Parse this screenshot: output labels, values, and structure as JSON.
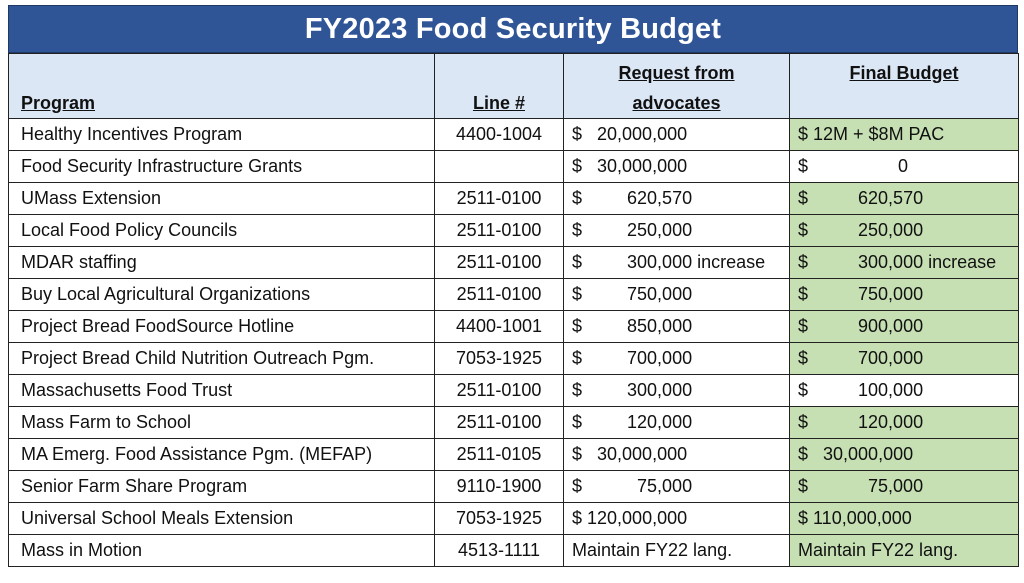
{
  "title": "FY2023 Food Security Budget",
  "headers": {
    "program": "Program",
    "line": "Line #",
    "request_1": "Request from",
    "request_2": "advocates",
    "final": "Final Budget"
  },
  "colors": {
    "title_bg": "#2f5597",
    "header_bg": "#dbe7f5",
    "highlight_green": "#c6e0b4"
  },
  "rows": [
    {
      "program": "Healthy Incentives Program",
      "line": "4400-1004",
      "request": "$   20,000,000",
      "final": "$ 12M + $8M PAC",
      "final_highlight": true
    },
    {
      "program": "Food Security Infrastructure Grants",
      "line": "",
      "request": "$   30,000,000",
      "final": "$                  0",
      "final_highlight": false
    },
    {
      "program": "UMass Extension",
      "line": "2511-0100",
      "request": "$         620,570",
      "final": "$          620,570",
      "final_highlight": true
    },
    {
      "program": "Local Food Policy Councils",
      "line": "2511-0100",
      "request": "$         250,000",
      "final": "$          250,000",
      "final_highlight": true
    },
    {
      "program": "MDAR staffing",
      "line": "2511-0100",
      "request": "$         300,000 increase",
      "final": "$          300,000 increase",
      "final_highlight": true
    },
    {
      "program": "Buy Local Agricultural Organizations",
      "line": "2511-0100",
      "request": "$         750,000",
      "final": "$          750,000",
      "final_highlight": true
    },
    {
      "program": "Project Bread FoodSource Hotline",
      "line": "4400-1001",
      "request": "$         850,000",
      "final": "$          900,000",
      "final_highlight": true
    },
    {
      "program": "Project Bread Child Nutrition Outreach Pgm.",
      "line": "7053-1925",
      "request": "$         700,000",
      "final": "$          700,000",
      "final_highlight": true
    },
    {
      "program": "Massachusetts Food Trust",
      "line": "2511-0100",
      "request": "$         300,000",
      "final": "$          100,000",
      "final_highlight": false
    },
    {
      "program": "Mass Farm to School",
      "line": "2511-0100",
      "request": "$         120,000",
      "final": "$          120,000",
      "final_highlight": true
    },
    {
      "program": "MA Emerg. Food Assistance Pgm. (MEFAP)",
      "line": "2511-0105",
      "request": "$   30,000,000",
      "final": "$   30,000,000",
      "final_highlight": true
    },
    {
      "program": "Senior Farm Share Program",
      "line": "9110-1900",
      "request": "$           75,000",
      "final": "$            75,000",
      "final_highlight": true
    },
    {
      "program": "Universal School Meals Extension",
      "line": "7053-1925",
      "request": "$ 120,000,000",
      "final": "$ 110,000,000",
      "final_highlight": true
    },
    {
      "program": "Mass in Motion",
      "line": "4513-1111",
      "request": "Maintain FY22 lang.",
      "final": "Maintain FY22 lang.",
      "final_highlight": true
    }
  ]
}
